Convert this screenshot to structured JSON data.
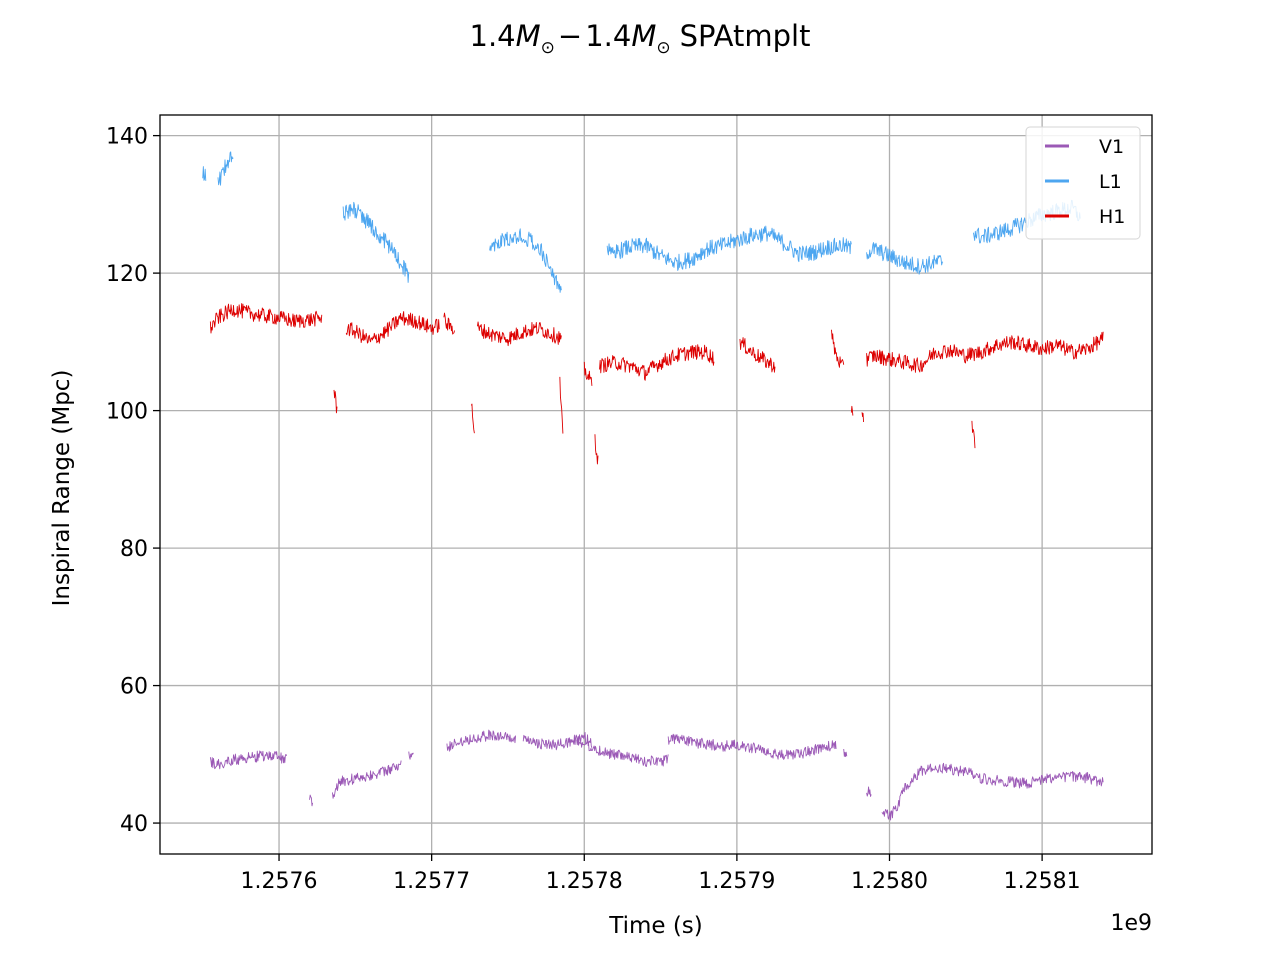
{
  "chart_data": {
    "type": "line",
    "title": "1.4M⊙ − 1.4M⊙ SPAtmplt",
    "title_parts": [
      "1.4",
      "M",
      "⊙",
      "−",
      "1.4",
      "M",
      "⊙",
      "SPAtmplt"
    ],
    "xlabel": "Time (s)",
    "ylabel": "Inspiral Range (Mpc)",
    "x_offset_label": "1e9",
    "xlim": [
      1.257522,
      1.258172
    ],
    "ylim": [
      35.5,
      143
    ],
    "x_ticks": [
      1.2576,
      1.2577,
      1.2578,
      1.2579,
      1.258,
      1.2581
    ],
    "x_tick_labels": [
      "1.2576",
      "1.2577",
      "1.2578",
      "1.2579",
      "1.2580",
      "1.2581"
    ],
    "y_ticks": [
      40,
      60,
      80,
      100,
      120,
      140
    ],
    "y_tick_labels": [
      "40",
      "60",
      "80",
      "100",
      "120",
      "140"
    ],
    "grid": true,
    "legend_position": "top-right",
    "series": [
      {
        "name": "V1",
        "color": "#9b59b6",
        "jitter": 0.8,
        "segments": [
          {
            "x": [
              1.257555,
              1.25756,
              1.25757,
              1.25758,
              1.25759,
              1.2576,
              1.257605
            ],
            "y": [
              48.8,
              48.5,
              49.2,
              49.5,
              49.8,
              49.6,
              49.2
            ]
          },
          {
            "x": [
              1.25762,
              1.257622
            ],
            "y": [
              43.5,
              43.2
            ]
          },
          {
            "x": [
              1.257635,
              1.25764,
              1.25765,
              1.25766,
              1.25767,
              1.25768
            ],
            "y": [
              44.2,
              46.0,
              46.5,
              47.0,
              47.5,
              48.5
            ]
          },
          {
            "x": [
              1.257685,
              1.257688
            ],
            "y": [
              50.0,
              49.5
            ]
          },
          {
            "x": [
              1.25771,
              1.25772,
              1.25773,
              1.25774,
              1.25775,
              1.257755
            ],
            "y": [
              51.0,
              52.0,
              52.5,
              52.8,
              52.4,
              52.0
            ]
          },
          {
            "x": [
              1.25776,
              1.25777,
              1.25778,
              1.25779,
              1.2578,
              1.257805
            ],
            "y": [
              52.0,
              51.6,
              51.3,
              51.8,
              52.5,
              51.5
            ]
          },
          {
            "x": [
              1.257795,
              1.2578,
              1.25781,
              1.25782,
              1.25783,
              1.25784,
              1.25785,
              1.257855
            ],
            "y": [
              52.0,
              51.5,
              50.5,
              50.0,
              49.5,
              49.0,
              49.0,
              49.2
            ]
          },
          {
            "x": [
              1.257855,
              1.25786,
              1.25787,
              1.25788,
              1.25789,
              1.2579,
              1.25791,
              1.25792,
              1.25793,
              1.25794,
              1.25795,
              1.25796,
              1.257965
            ],
            "y": [
              52.0,
              52.3,
              51.8,
              51.5,
              51.2,
              51.3,
              51.0,
              50.5,
              49.8,
              50.0,
              50.6,
              51.2,
              51.5
            ]
          },
          {
            "x": [
              1.25797,
              1.257972
            ],
            "y": [
              50.5,
              50.0
            ]
          },
          {
            "x": [
              1.257985,
              1.257988
            ],
            "y": [
              44.8,
              44.0
            ]
          },
          {
            "x": [
              1.257995,
              1.258,
              1.258005,
              1.25801,
              1.25802,
              1.25803,
              1.25804,
              1.25805,
              1.258055
            ],
            "y": [
              42.0,
              40.8,
              42.5,
              45.0,
              47.5,
              48.0,
              47.8,
              47.5,
              47.2
            ]
          },
          {
            "x": [
              1.258055,
              1.25806,
              1.25807,
              1.25808,
              1.25809,
              1.2581,
              1.25811,
              1.25812,
              1.25813,
              1.25814
            ],
            "y": [
              47.0,
              46.5,
              46.2,
              46.0,
              45.8,
              46.3,
              46.8,
              46.8,
              46.6,
              45.8
            ]
          }
        ]
      },
      {
        "name": "L1",
        "color": "#4da6f0",
        "jitter": 1.2,
        "segments": [
          {
            "x": [
              1.25755,
              1.257552
            ],
            "y": [
              134.5,
              134.0
            ]
          },
          {
            "x": [
              1.25756,
              1.257565,
              1.25757
            ],
            "y": [
              133.0,
              135.5,
              137.5
            ]
          },
          {
            "x": [
              1.257642,
              1.25765,
              1.25766,
              1.25767,
              1.25768,
              1.257685
            ],
            "y": [
              128.8,
              129.2,
              127.0,
              124.5,
              121.5,
              119.5
            ]
          },
          {
            "x": [
              1.257738,
              1.25774,
              1.25775,
              1.25776,
              1.25777,
              1.25778,
              1.257785
            ],
            "y": [
              124.5,
              124.2,
              124.8,
              125.5,
              124.0,
              119.5,
              117.5
            ]
          },
          {
            "x": [
              1.257815,
              1.25782,
              1.25783,
              1.25784,
              1.25785,
              1.25786,
              1.25787,
              1.25788,
              1.25789,
              1.2579,
              1.25791,
              1.25792,
              1.25793,
              1.25794,
              1.25795,
              1.25796,
              1.25797,
              1.257975
            ],
            "y": [
              123.5,
              123.0,
              123.8,
              124.0,
              122.5,
              121.5,
              122.0,
              123.5,
              124.0,
              124.8,
              125.5,
              125.8,
              124.5,
              122.8,
              123.0,
              123.8,
              124.0,
              123.5
            ]
          },
          {
            "x": [
              1.257985,
              1.25799,
              1.258,
              1.25801,
              1.25802,
              1.258035
            ],
            "y": [
              123.0,
              123.5,
              122.5,
              121.5,
              121.0,
              121.8
            ]
          },
          {
            "x": [
              1.258055,
              1.25806,
              1.25807,
              1.25808,
              1.25809,
              1.2581,
              1.25811,
              1.25812,
              1.258125
            ],
            "y": [
              126.0,
              125.2,
              125.8,
              126.5,
              127.5,
              128.5,
              129.0,
              129.5,
              128.0
            ]
          }
        ]
      },
      {
        "name": "H1",
        "color": "#dd0000",
        "jitter": 1.1,
        "segments": [
          {
            "x": [
              1.257555,
              1.25756,
              1.25757,
              1.25758,
              1.25759,
              1.2576,
              1.25761,
              1.25762,
              1.257628
            ],
            "y": [
              112.0,
              113.5,
              114.8,
              114.2,
              113.8,
              113.5,
              113.0,
              113.2,
              113.5
            ]
          },
          {
            "x": [
              1.257636,
              1.257638
            ],
            "y": [
              103.0,
              100.0
            ]
          },
          {
            "x": [
              1.257644,
              1.25765,
              1.25766,
              1.25767,
              1.25768,
              1.25769,
              1.2577,
              1.257705
            ],
            "y": [
              112.0,
              111.5,
              110.0,
              111.5,
              113.5,
              113.0,
              112.0,
              112.5
            ]
          },
          {
            "x": [
              1.257708,
              1.25771,
              1.257715
            ],
            "y": [
              113.5,
              112.5,
              112.0
            ]
          },
          {
            "x": [
              1.257726,
              1.257728
            ],
            "y": [
              101.0,
              97.0
            ]
          },
          {
            "x": [
              1.25773,
              1.25774,
              1.25775,
              1.25776,
              1.25777,
              1.25778,
              1.257785
            ],
            "y": [
              112.0,
              111.0,
              110.5,
              111.5,
              112.0,
              111.0,
              110.5
            ]
          },
          {
            "x": [
              1.257784,
              1.257786
            ],
            "y": [
              104.0,
              96.0
            ]
          },
          {
            "x": [
              1.2578,
              1.257805
            ],
            "y": [
              106.0,
              104.0
            ]
          },
          {
            "x": [
              1.257807,
              1.257809
            ],
            "y": [
              96.0,
              92.5
            ]
          },
          {
            "x": [
              1.25781,
              1.25782,
              1.25783,
              1.25784,
              1.25785,
              1.25786,
              1.25787,
              1.25788,
              1.257885
            ],
            "y": [
              106.5,
              107.0,
              106.5,
              105.5,
              107.0,
              108.0,
              108.5,
              108.5,
              107.5
            ]
          },
          {
            "x": [
              1.257902,
              1.25791,
              1.25792,
              1.257925
            ],
            "y": [
              110.0,
              108.5,
              107.0,
              106.5
            ]
          },
          {
            "x": [
              1.257962,
              1.257965,
              1.25797
            ],
            "y": [
              111.0,
              108.0,
              106.0
            ]
          },
          {
            "x": [
              1.257975,
              1.257976
            ],
            "y": [
              100.5,
              100.0
            ]
          },
          {
            "x": [
              1.257982,
              1.257983
            ],
            "y": [
              100.0,
              99.0
            ]
          },
          {
            "x": [
              1.257985,
              1.25799,
              1.258,
              1.25801,
              1.25802,
              1.25803,
              1.25804,
              1.25805,
              1.25806,
              1.25807,
              1.25808,
              1.25809,
              1.2581,
              1.25811,
              1.25812,
              1.25813,
              1.25814
            ],
            "y": [
              107.5,
              108.0,
              107.5,
              107.0,
              106.5,
              108.5,
              108.8,
              108.0,
              108.5,
              109.5,
              110.0,
              109.5,
              109.0,
              109.5,
              108.5,
              109.0,
              110.5
            ]
          },
          {
            "x": [
              1.258054,
              1.258056
            ],
            "y": [
              97.5,
              95.5
            ]
          }
        ]
      }
    ]
  }
}
